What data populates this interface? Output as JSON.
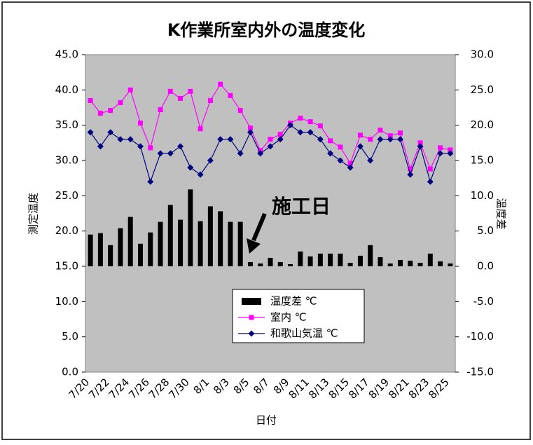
{
  "chart_data": {
    "type": "bar",
    "title": "K作業所室内外の温度変化",
    "x_label": "日付",
    "y_label": "測定温度",
    "y2_label": "温度差",
    "annotation": "施工日",
    "categories": [
      "7/20",
      null,
      "7/22",
      null,
      "7/24",
      null,
      "7/26",
      null,
      "7/28",
      null,
      "7/30",
      null,
      "8/1",
      null,
      "8/3",
      null,
      "8/5",
      null,
      "8/7",
      null,
      "8/9",
      null,
      "8/11",
      null,
      "8/13",
      null,
      "8/15",
      null,
      "8/17",
      null,
      "8/19",
      null,
      "8/21",
      null,
      "8/23",
      null,
      "8/25"
    ],
    "series": [
      {
        "name": "温度差 ℃",
        "type": "bar",
        "axis": "y2",
        "color": "#000000",
        "values": [
          4.5,
          4.7,
          3.0,
          5.4,
          7.0,
          3.2,
          4.8,
          6.3,
          8.7,
          6.6,
          10.9,
          6.4,
          8.5,
          7.8,
          6.3,
          6.3,
          0.6,
          0.4,
          1.2,
          0.6,
          0.3,
          2.1,
          1.4,
          1.8,
          1.8,
          1.8,
          0.5,
          1.5,
          3.0,
          1.3,
          0.4,
          0.9,
          0.8,
          0.5,
          1.8,
          0.7,
          0.4
        ]
      },
      {
        "name": "室内 ℃",
        "type": "line",
        "marker": "square",
        "color": "#ff00ff",
        "values": [
          38.5,
          36.7,
          37.1,
          38.2,
          40.0,
          35.3,
          31.8,
          37.2,
          39.8,
          38.8,
          39.8,
          34.5,
          38.5,
          40.8,
          39.2,
          37.1,
          34.6,
          31.4,
          33.0,
          33.7,
          35.3,
          36.0,
          35.5,
          34.9,
          32.8,
          31.9,
          29.6,
          33.6,
          33.0,
          34.3,
          33.5,
          33.9,
          28.8,
          32.5,
          28.8,
          31.8,
          31.5
        ]
      },
      {
        "name": "和歌山気温 ℃",
        "type": "line",
        "marker": "diamond",
        "color": "#000080",
        "values": [
          34,
          32,
          34,
          33,
          33,
          32,
          27,
          31,
          31,
          32,
          29,
          28,
          30,
          33,
          33,
          31,
          34,
          31,
          32,
          33,
          35,
          34,
          34,
          33,
          31,
          30,
          29,
          32,
          30,
          33,
          33,
          33,
          28,
          32,
          27,
          31,
          31
        ]
      }
    ],
    "ylim": [
      0,
      45
    ],
    "yticks": [
      {
        "value": 0,
        "label": "0.0"
      },
      {
        "value": 5,
        "label": "5.0"
      },
      {
        "value": 10,
        "label": "10.0"
      },
      {
        "value": 15,
        "label": "15.0"
      },
      {
        "value": 20,
        "label": "20.0"
      },
      {
        "value": 25,
        "label": "25.0"
      },
      {
        "value": 30,
        "label": "30.0"
      },
      {
        "value": 35,
        "label": "35.0"
      },
      {
        "value": 40,
        "label": "40.0"
      },
      {
        "value": 45,
        "label": "45.0"
      }
    ],
    "y2lim": [
      -15,
      30
    ],
    "y2ticks": [
      {
        "value": -15,
        "label": "-15.0"
      },
      {
        "value": -10,
        "label": "-10.0"
      },
      {
        "value": -5,
        "label": "-5.0"
      },
      {
        "value": 0,
        "label": "0.0"
      },
      {
        "value": 5,
        "label": "5.0"
      },
      {
        "value": 10,
        "label": "10.0"
      },
      {
        "value": 15,
        "label": "15.0"
      },
      {
        "value": 20,
        "label": "20.0"
      },
      {
        "value": 25,
        "label": "25.0"
      },
      {
        "value": 30,
        "label": "30.0"
      }
    ],
    "plot_background": "#c0c0c0"
  }
}
